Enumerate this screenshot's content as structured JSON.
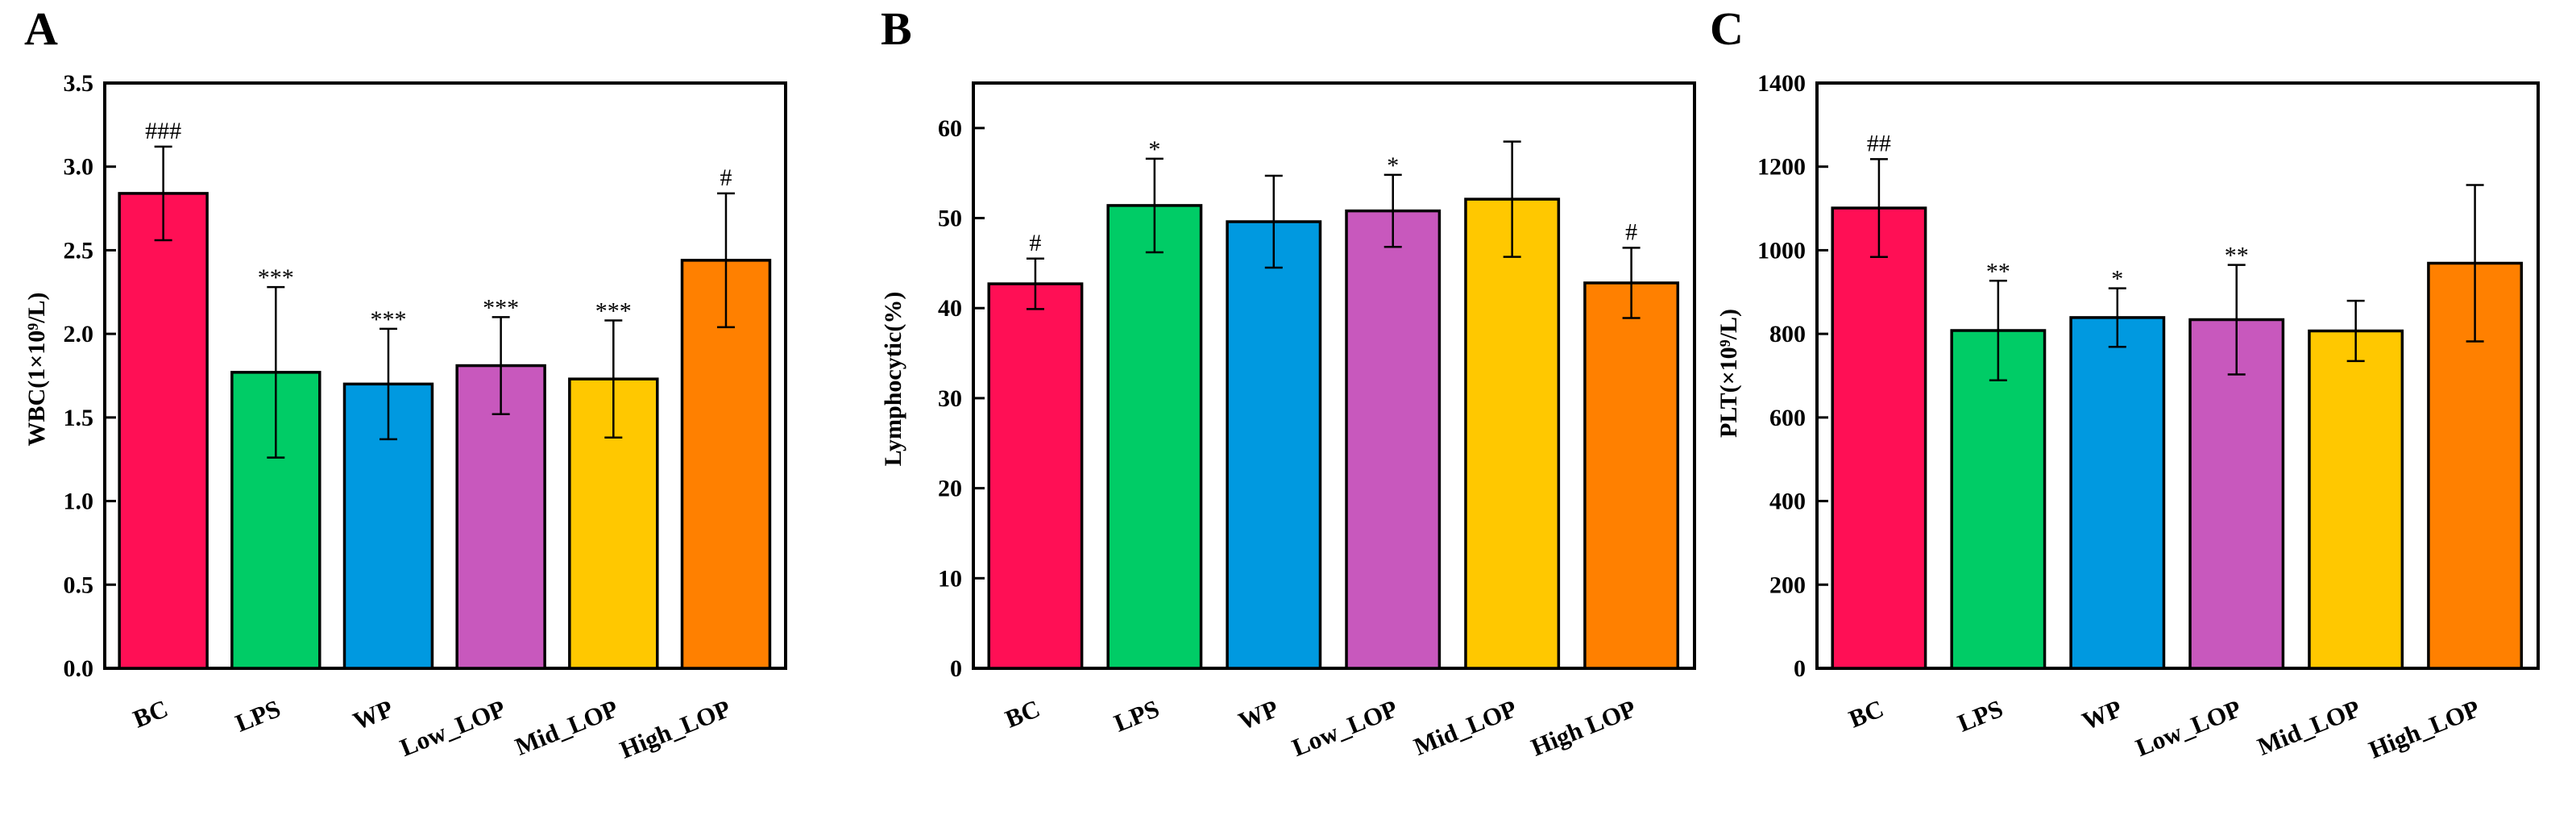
{
  "panels": [
    {
      "letter": "A",
      "ylabel": "WBC(1×10⁹/L)",
      "yticks": [
        "0.0",
        "0.5",
        "1.0",
        "1.5",
        "2.0",
        "2.5",
        "3.0",
        "3.5"
      ],
      "categories": [
        "BC",
        "LPS",
        "WP",
        "Low_LOP",
        "Mid_LOP",
        "High_LOP"
      ],
      "significance": [
        "###",
        "***",
        "***",
        "***",
        "***",
        "#"
      ]
    },
    {
      "letter": "B",
      "ylabel": "Lymphocytic(%)",
      "yticks": [
        "0",
        "10",
        "20",
        "30",
        "40",
        "50",
        "60"
      ],
      "categories": [
        "BC",
        "LPS",
        "WP",
        "Low_LOP",
        "Mid_LOP",
        "High LOP"
      ],
      "significance": [
        "#",
        "*",
        "",
        "*",
        "",
        "#"
      ]
    },
    {
      "letter": "C",
      "ylabel": "PLT(×10⁹/L)",
      "yticks": [
        "0",
        "200",
        "400",
        "600",
        "800",
        "1000",
        "1200",
        "1400"
      ],
      "categories": [
        "BC",
        "LPS",
        "WP",
        "Low_LOP",
        "Mid_LOP",
        "High_LOP"
      ],
      "significance": [
        "##",
        "**",
        "*",
        "**",
        "",
        ""
      ]
    }
  ],
  "colors": [
    "#ff0f55",
    "#00cc66",
    "#0099e0",
    "#c858bd",
    "#ffc800",
    "#ff8000"
  ],
  "chart_data": [
    {
      "type": "bar",
      "title": "A",
      "ylabel": "WBC(1×10⁹/L)",
      "categories": [
        "BC",
        "LPS",
        "WP",
        "Low_LOP",
        "Mid_LOP",
        "High_LOP"
      ],
      "values": [
        2.84,
        1.77,
        1.7,
        1.81,
        1.73,
        2.44
      ],
      "errors": [
        0.28,
        0.51,
        0.33,
        0.29,
        0.35,
        0.4
      ],
      "significance": [
        "###",
        "***",
        "***",
        "***",
        "***",
        "#"
      ],
      "ylim": [
        0,
        3.5
      ],
      "ytick_step": 0.5
    },
    {
      "type": "bar",
      "title": "B",
      "ylabel": "Lymphocytic(%)",
      "categories": [
        "BC",
        "LPS",
        "WP",
        "Low_LOP",
        "Mid_LOP",
        "High LOP"
      ],
      "values": [
        42.7,
        51.4,
        49.6,
        50.8,
        52.1,
        42.8
      ],
      "errors": [
        2.8,
        5.2,
        5.1,
        4.0,
        6.4,
        3.9
      ],
      "significance": [
        "#",
        "*",
        "",
        "*",
        "",
        "#"
      ],
      "ylim": [
        0,
        65
      ],
      "ytick_step": 10
    },
    {
      "type": "bar",
      "title": "C",
      "ylabel": "PLT(×10⁹/L)",
      "categories": [
        "BC",
        "LPS",
        "WP",
        "Low_LOP",
        "Mid_LOP",
        "High_LOP"
      ],
      "values": [
        1101,
        808,
        839,
        834,
        807,
        969
      ],
      "errors": [
        117,
        119,
        70,
        131,
        72,
        187
      ],
      "significance": [
        "##",
        "**",
        "*",
        "**",
        "",
        ""
      ],
      "ylim": [
        0,
        1400
      ],
      "ytick_step": 200
    }
  ]
}
